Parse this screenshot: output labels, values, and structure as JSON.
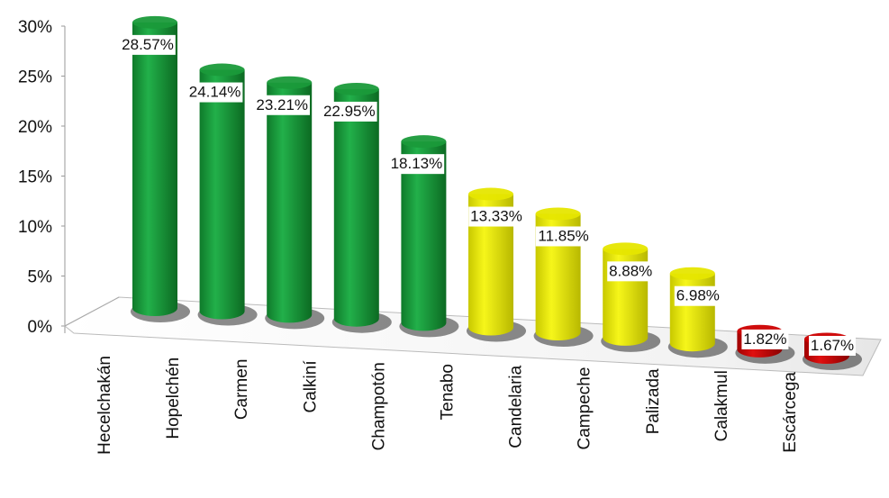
{
  "chart_data": {
    "type": "bar",
    "categories": [
      "Hecelchakán",
      "Hopelchén",
      "Carmen",
      "Calkiní",
      "Champotón",
      "Tenabo",
      "Candelaria",
      "Campeche",
      "Palizada",
      "Calakmul",
      "Escárcega"
    ],
    "values": [
      28.57,
      24.14,
      23.21,
      22.95,
      18.13,
      13.33,
      11.85,
      8.88,
      6.98,
      1.82,
      1.67
    ],
    "data_labels": [
      "28.57%",
      "24.14%",
      "23.21%",
      "22.95%",
      "18.13%",
      "13.33%",
      "11.85%",
      "8.88%",
      "6.98%",
      "1.82%",
      "1.67%"
    ],
    "bar_colors": [
      "#1a9a3a",
      "#1a9a3a",
      "#1a9a3a",
      "#1a9a3a",
      "#1a9a3a",
      "#e6e600",
      "#e6e600",
      "#e6e600",
      "#e6e600",
      "#cc0000",
      "#cc0000"
    ],
    "yticks": [
      "0%",
      "5%",
      "10%",
      "15%",
      "20%",
      "25%",
      "30%"
    ],
    "ylim": [
      0,
      30
    ],
    "title": "",
    "xlabel": "",
    "ylabel": "",
    "grid": false,
    "legend": "none"
  }
}
